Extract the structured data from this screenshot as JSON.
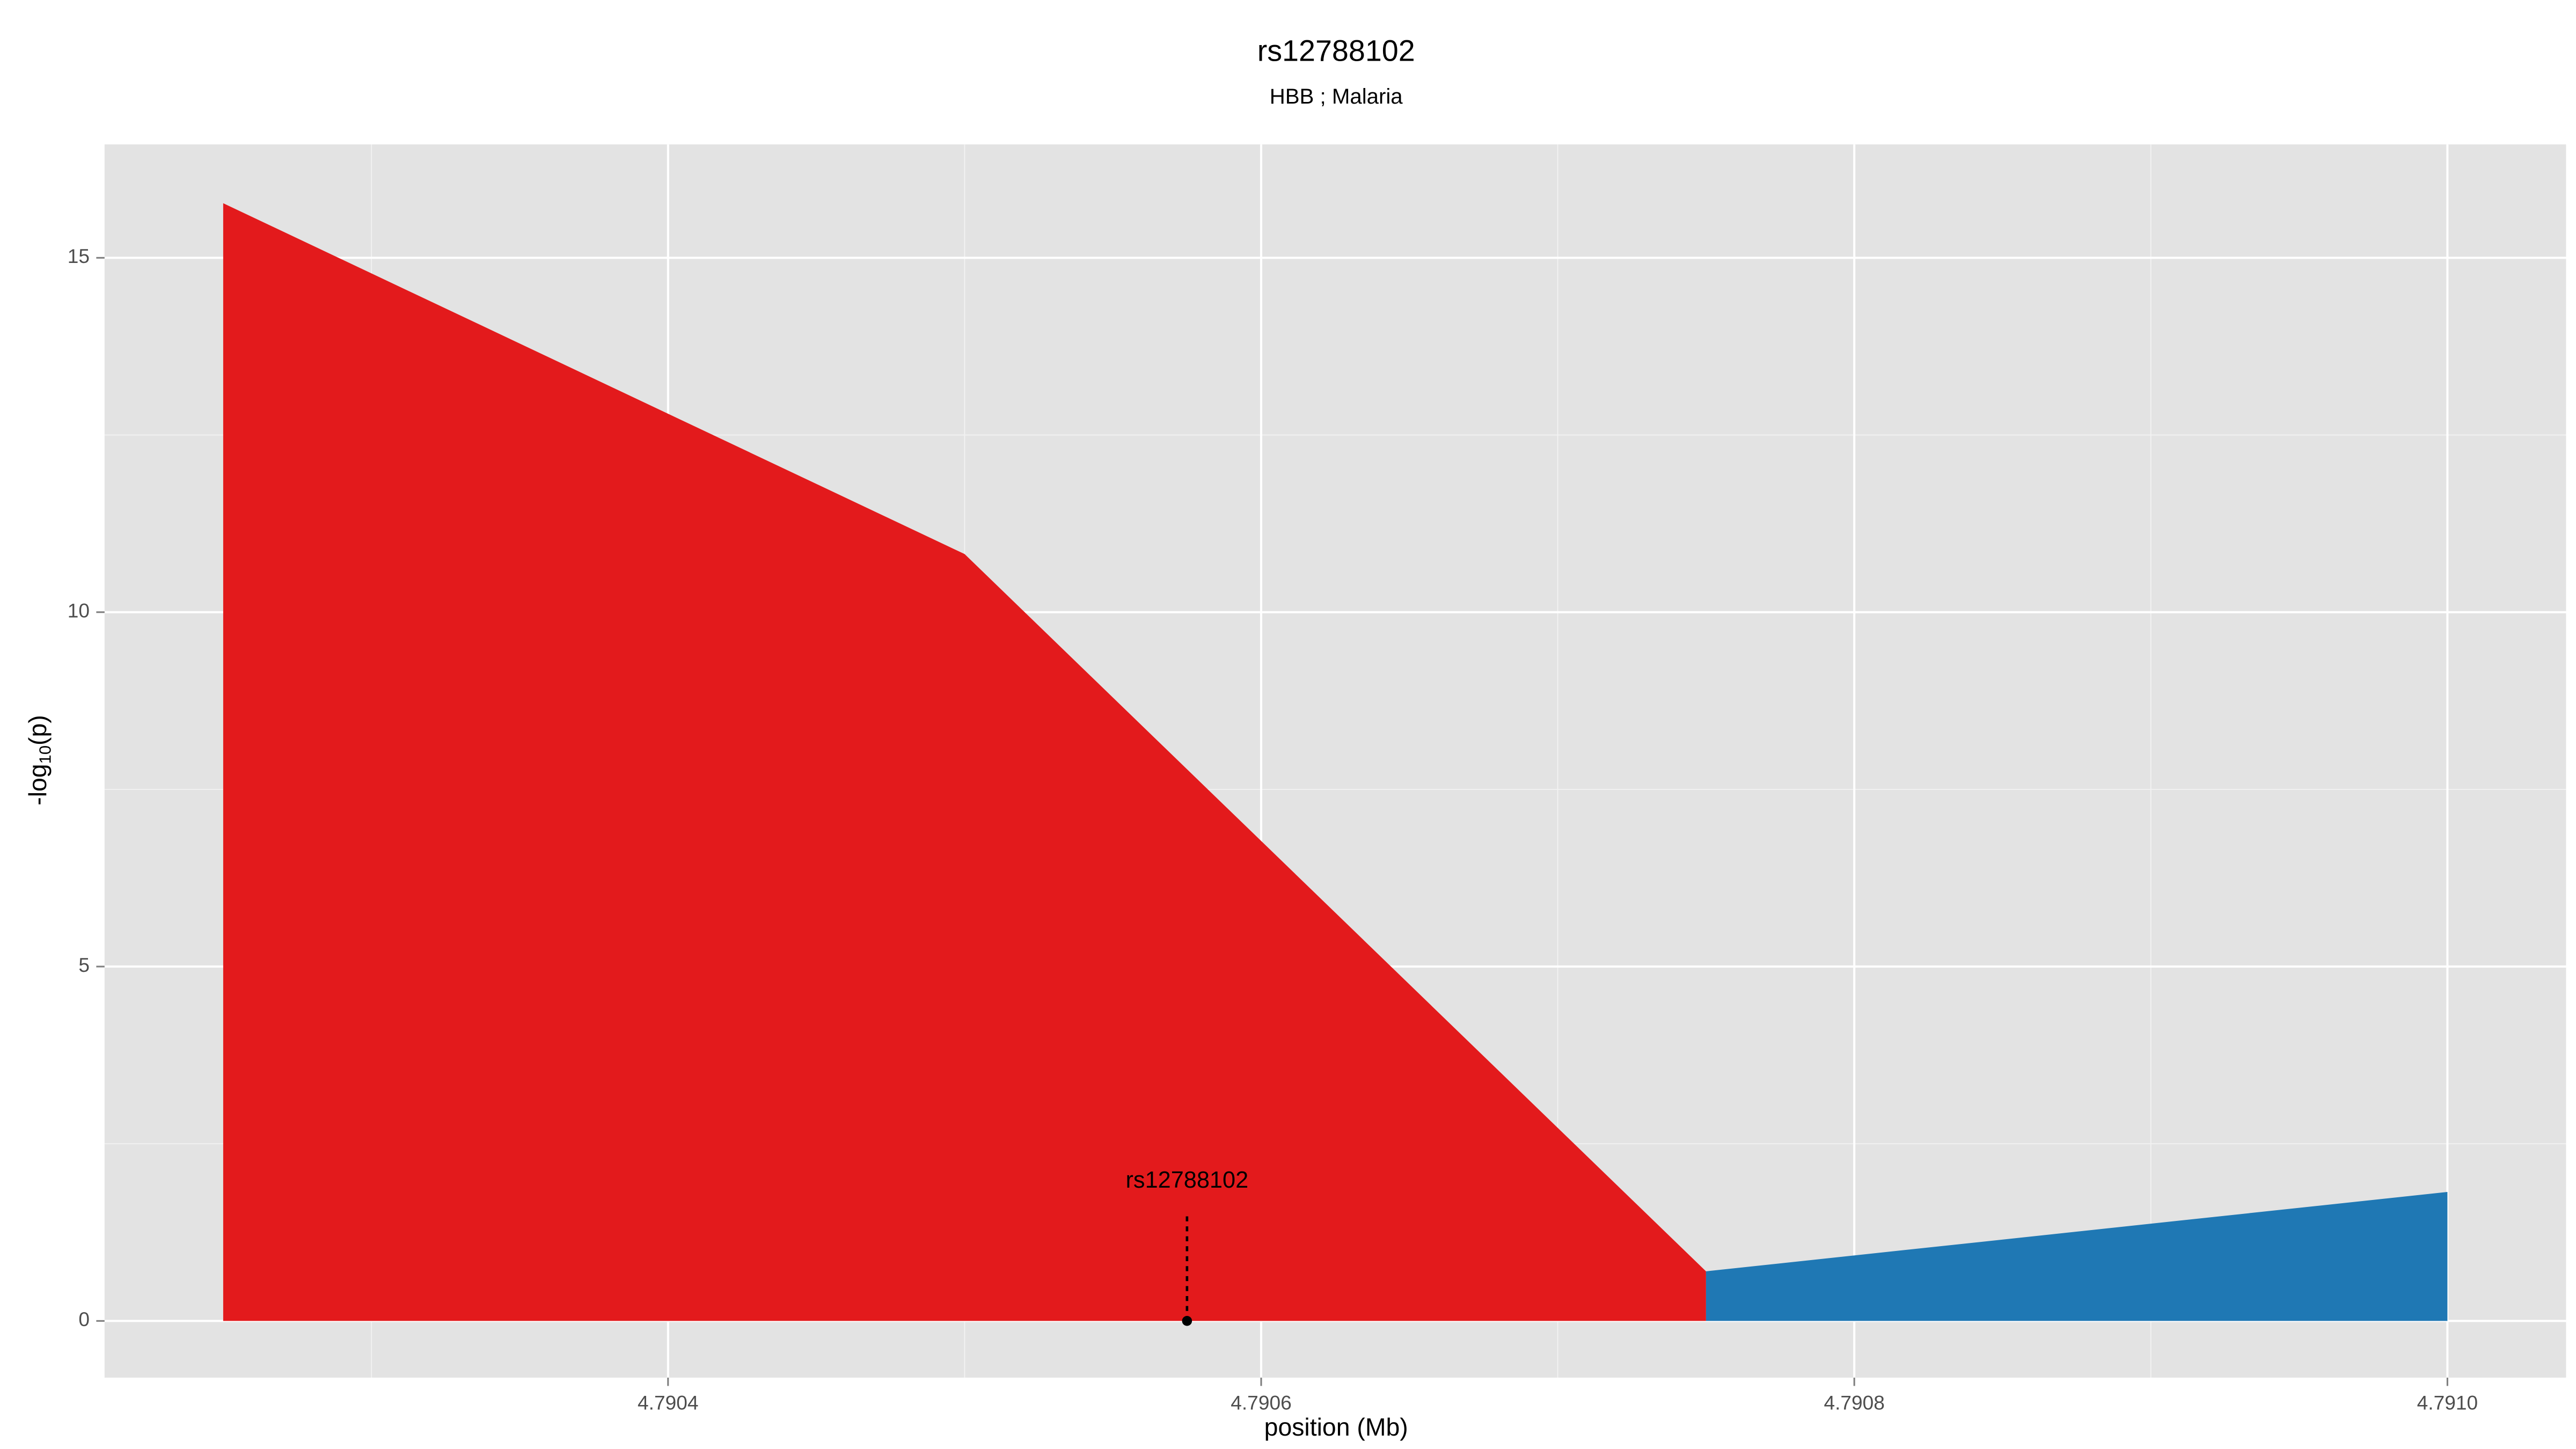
{
  "chart_data": {
    "type": "area",
    "title": "rs12788102",
    "subtitle": "HBB ; Malaria",
    "x_label": "position (Mb)",
    "y_label": [
      "-log",
      "10",
      "(p)"
    ],
    "series": [
      {
        "color": "#e31a1c",
        "x": [
          4.79025,
          4.7905,
          4.79075
        ],
        "values": [
          15.77,
          10.82,
          0.7
        ]
      },
      {
        "color": "#1f78b4",
        "x": [
          4.79075,
          4.791
        ],
        "values": [
          0.7,
          1.82
        ]
      }
    ],
    "annotation": {
      "label": "rs12788102",
      "x": 4.790575,
      "y": 0
    },
    "xlim": [
      4.79021,
      4.79104
    ],
    "ylim": [
      -0.8,
      16.6
    ],
    "xticks": [
      4.7904,
      4.7906,
      4.7908,
      {
        "value": 4.791,
        "label": "4.7910"
      }
    ],
    "yticks": [
      0,
      5,
      10,
      15
    ],
    "x_minor_ticks": [
      4.7903,
      4.7905,
      4.7907,
      4.7909
    ],
    "y_minor_ticks": [
      2.5,
      7.5,
      12.5
    ],
    "grid": true,
    "panel_color": "#e3e3e3"
  }
}
